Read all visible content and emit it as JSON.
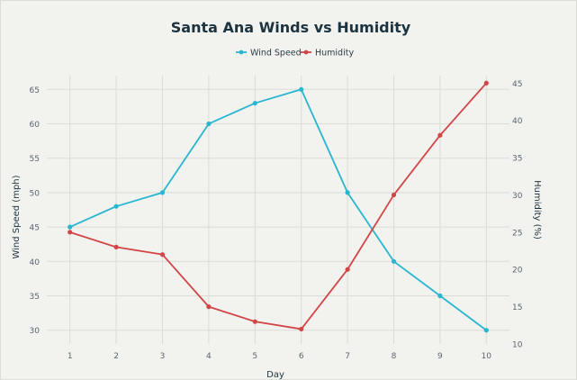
{
  "chart_data": {
    "type": "line",
    "title": "Santa Ana Winds vs Humidity",
    "xlabel": "Day",
    "ylabel_left": "Wind Speed (mph)",
    "ylabel_right": "Humidity (%)",
    "x": [
      1,
      2,
      3,
      4,
      5,
      6,
      7,
      8,
      9,
      10
    ],
    "y_left_range": [
      28,
      67
    ],
    "y_right_range": [
      10,
      46
    ],
    "y_left_ticks": [
      30,
      35,
      40,
      45,
      50,
      55,
      60,
      65
    ],
    "y_right_ticks": [
      10,
      15,
      20,
      25,
      30,
      35,
      40,
      45
    ],
    "legend_position": "top-center",
    "grid": true,
    "series": [
      {
        "name": "Wind Speed",
        "axis": "left",
        "color": "#29b6d1",
        "values": [
          45,
          48,
          50,
          60,
          63,
          65,
          50,
          40,
          35,
          30
        ]
      },
      {
        "name": "Humidity",
        "axis": "right",
        "color": "#d14646",
        "values": [
          25,
          23,
          22,
          15,
          13,
          12,
          20,
          30,
          38,
          45
        ]
      }
    ]
  }
}
